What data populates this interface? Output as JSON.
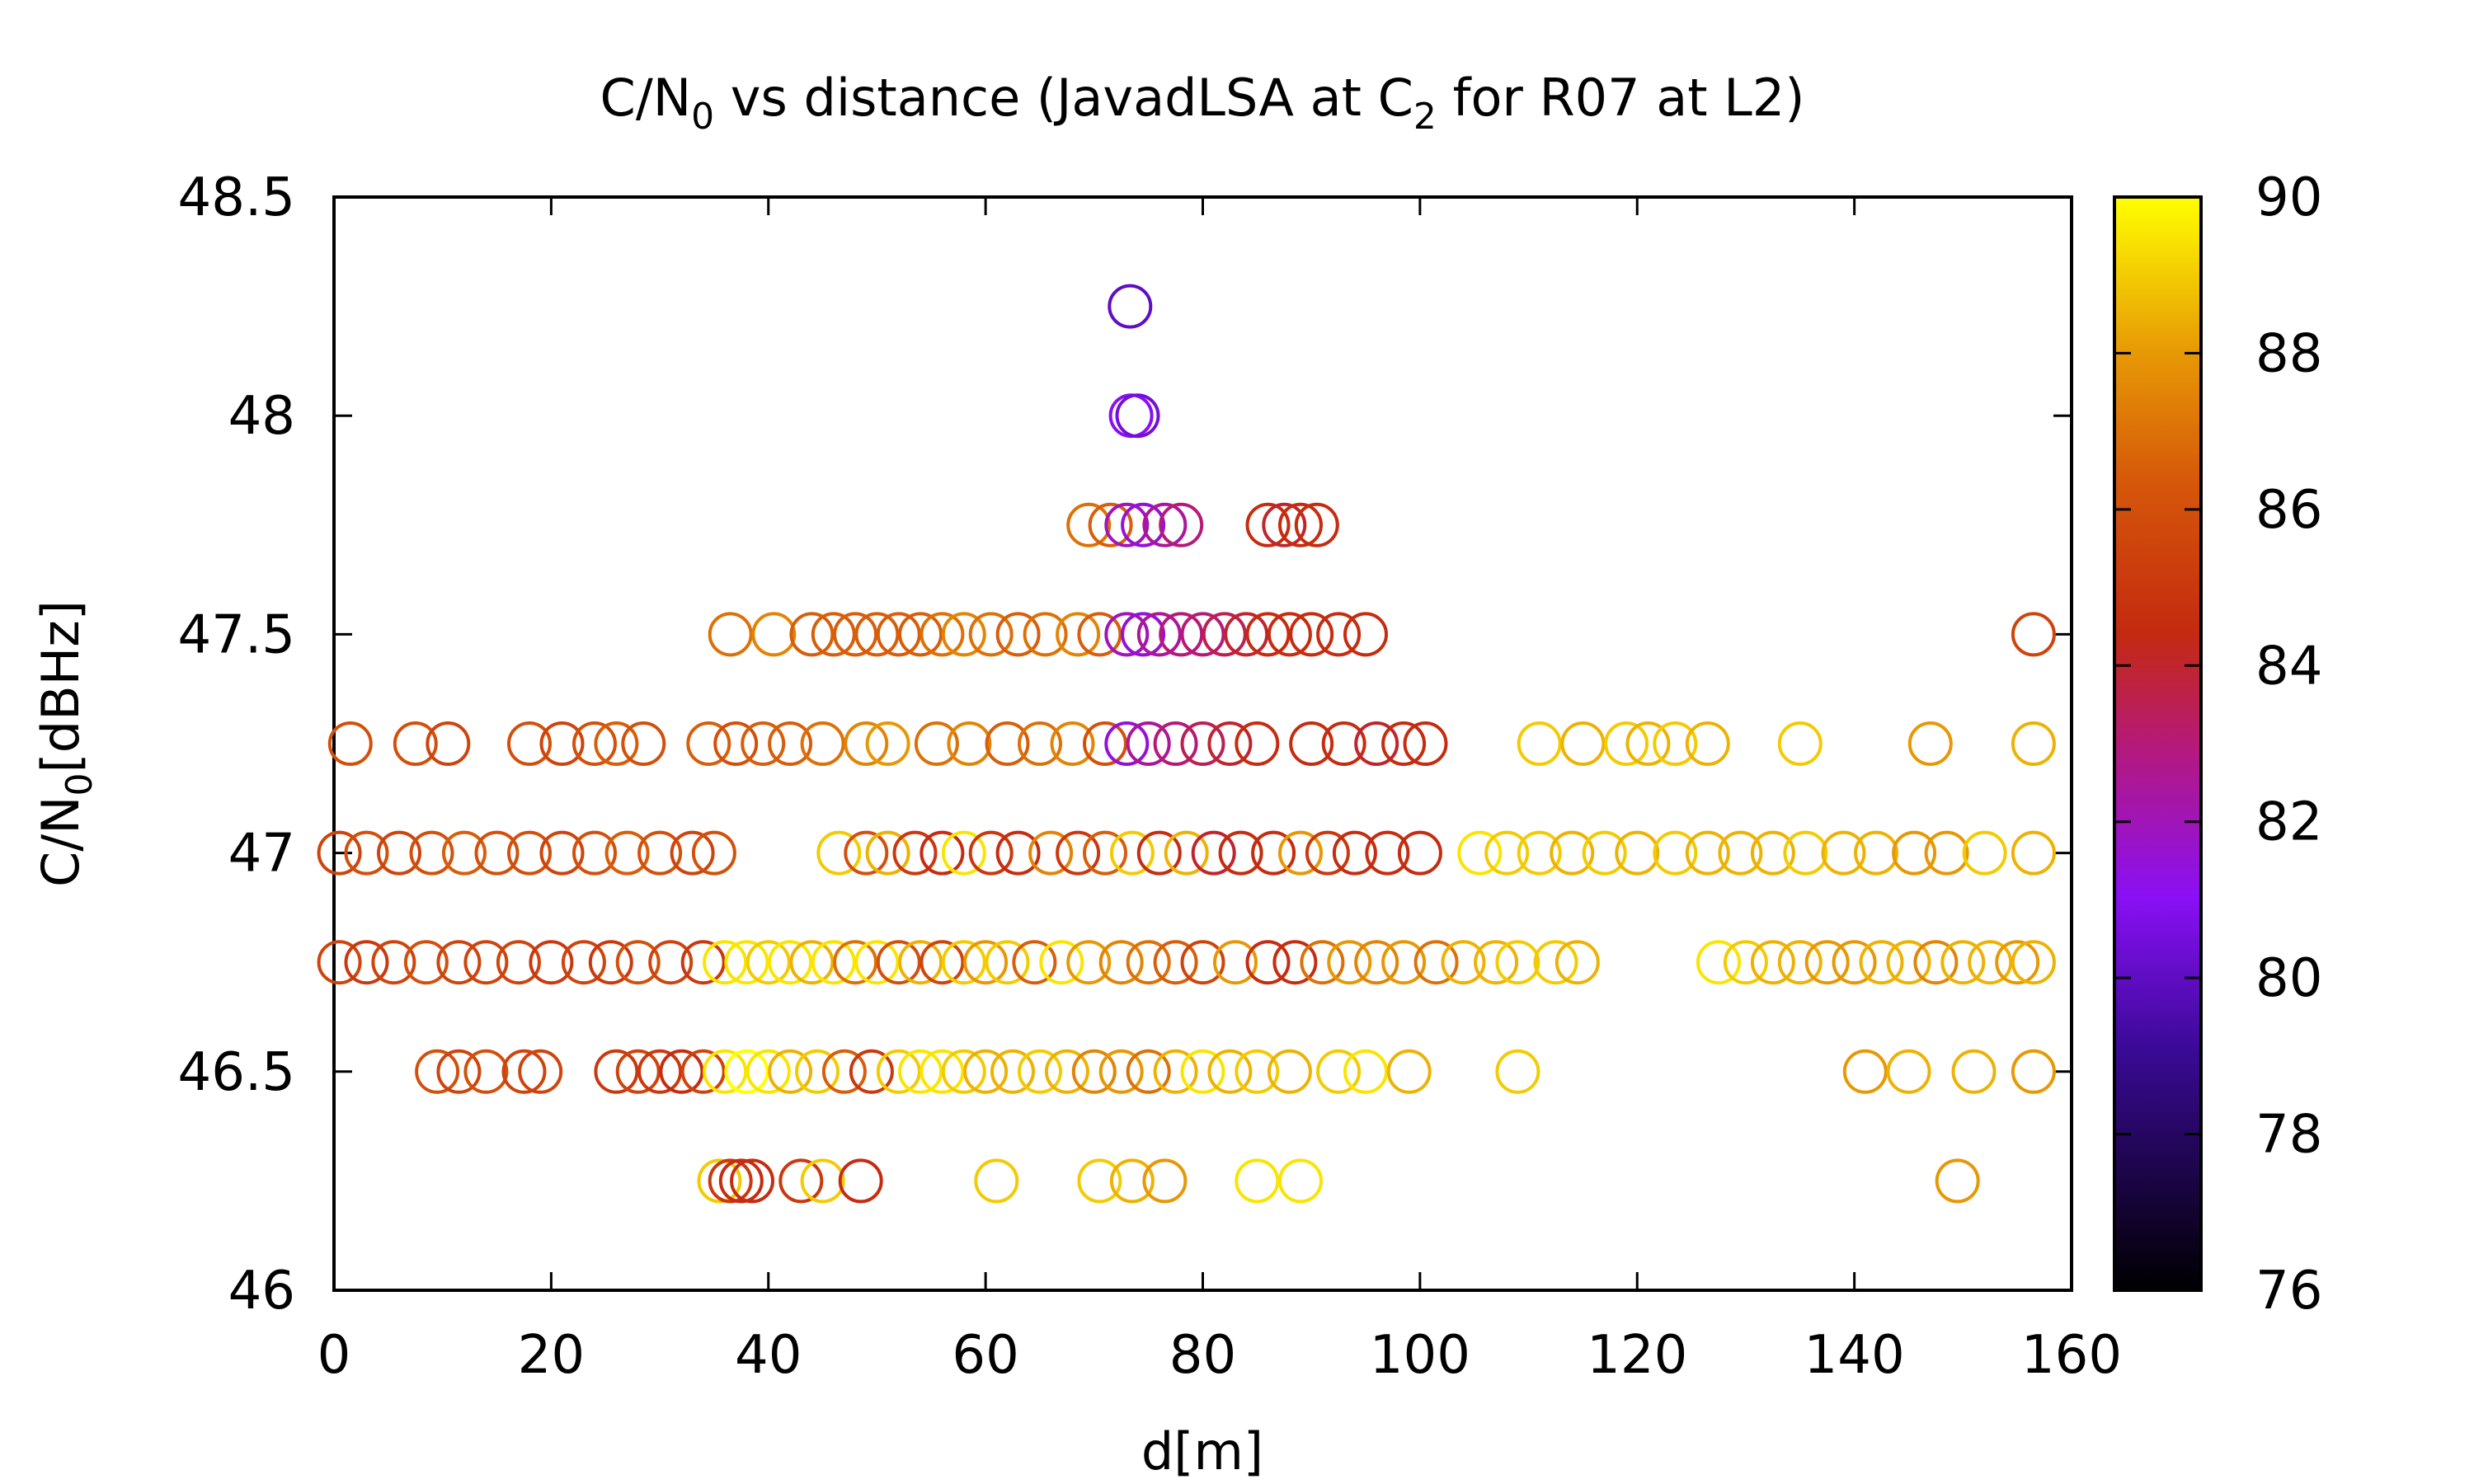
{
  "chart_data": {
    "type": "scatter",
    "title_parts": [
      "C/N",
      "0",
      " vs distance (JavadLSA at C",
      "2",
      " for R07 at L2)"
    ],
    "xlabel": "d[m]",
    "ylabel_parts": [
      "C/N",
      "0",
      "[dBHz]"
    ],
    "xlim": [
      0,
      160
    ],
    "ylim": [
      46,
      48.5
    ],
    "xticks": [
      "0",
      "20",
      "40",
      "60",
      "80",
      "100",
      "120",
      "140",
      "160"
    ],
    "yticks": [
      "46",
      "46.5",
      "47",
      "47.5",
      "48",
      "48.5"
    ],
    "colorbar": {
      "range": [
        76,
        90
      ],
      "ticks": [
        "76",
        "78",
        "80",
        "82",
        "84",
        "86",
        "88",
        "90"
      ],
      "palette": "gnuplot black-purple-red-orange-yellow"
    },
    "grid": false,
    "legend": "none",
    "marker": "open circle",
    "point_format": "[d_m, CN0_dBHz, color_value]",
    "points": [
      [
        73.3,
        48.25,
        80.0
      ],
      [
        73.4,
        48.0,
        81.0
      ],
      [
        74.0,
        48.0,
        80.5
      ],
      [
        69.5,
        47.75,
        87.0
      ],
      [
        71.5,
        47.75,
        86.5
      ],
      [
        73.0,
        47.75,
        82.0
      ],
      [
        74.5,
        47.75,
        81.5
      ],
      [
        76.5,
        47.75,
        82.5
      ],
      [
        78.0,
        47.75,
        83.0
      ],
      [
        86.0,
        47.75,
        84.5
      ],
      [
        87.5,
        47.75,
        84.0
      ],
      [
        89.0,
        47.75,
        84.5
      ],
      [
        90.5,
        47.75,
        84.5
      ],
      [
        156.5,
        47.5,
        85.5
      ],
      [
        36.5,
        47.5,
        87.0
      ],
      [
        40.5,
        47.5,
        87.5
      ],
      [
        44.0,
        47.5,
        86.5
      ],
      [
        46.0,
        47.5,
        86.5
      ],
      [
        48.0,
        47.5,
        86.5
      ],
      [
        50.0,
        47.5,
        86.5
      ],
      [
        52.0,
        47.5,
        86.5
      ],
      [
        54.0,
        47.5,
        86.5
      ],
      [
        56.0,
        47.5,
        87.0
      ],
      [
        58.0,
        47.5,
        87.5
      ],
      [
        60.5,
        47.5,
        87.0
      ],
      [
        63.0,
        47.5,
        86.5
      ],
      [
        65.5,
        47.5,
        87.0
      ],
      [
        68.5,
        47.5,
        87.5
      ],
      [
        70.5,
        47.5,
        86.5
      ],
      [
        73.0,
        47.5,
        82.0
      ],
      [
        74.5,
        47.5,
        81.5
      ],
      [
        76.0,
        47.5,
        82.5
      ],
      [
        78.0,
        47.5,
        83.0
      ],
      [
        80.0,
        47.5,
        83.0
      ],
      [
        82.0,
        47.5,
        83.5
      ],
      [
        84.0,
        47.5,
        84.0
      ],
      [
        86.0,
        47.5,
        84.5
      ],
      [
        88.0,
        47.5,
        84.5
      ],
      [
        90.0,
        47.5,
        84.5
      ],
      [
        92.5,
        47.5,
        84.5
      ],
      [
        95.0,
        47.5,
        84.5
      ],
      [
        1.5,
        47.25,
        86.0
      ],
      [
        7.5,
        47.25,
        86.0
      ],
      [
        10.5,
        47.25,
        85.5
      ],
      [
        18.0,
        47.25,
        86.0
      ],
      [
        21.0,
        47.25,
        85.5
      ],
      [
        24.0,
        47.25,
        86.0
      ],
      [
        26.0,
        47.25,
        86.5
      ],
      [
        28.5,
        47.25,
        86.0
      ],
      [
        34.5,
        47.25,
        86.5
      ],
      [
        37.0,
        47.25,
        86.0
      ],
      [
        39.5,
        47.25,
        86.5
      ],
      [
        42.0,
        47.25,
        86.5
      ],
      [
        45.0,
        47.25,
        87.0
      ],
      [
        49.0,
        47.25,
        87.5
      ],
      [
        51.0,
        47.25,
        88.0
      ],
      [
        55.5,
        47.25,
        87.0
      ],
      [
        58.5,
        47.25,
        87.5
      ],
      [
        62.0,
        47.25,
        86.5
      ],
      [
        65.0,
        47.25,
        87.0
      ],
      [
        68.0,
        47.25,
        87.5
      ],
      [
        71.0,
        47.25,
        86.0
      ],
      [
        73.0,
        47.25,
        81.5
      ],
      [
        75.0,
        47.25,
        82.5
      ],
      [
        77.5,
        47.25,
        83.0
      ],
      [
        80.0,
        47.25,
        83.5
      ],
      [
        82.5,
        47.25,
        84.0
      ],
      [
        85.0,
        47.25,
        84.5
      ],
      [
        90.0,
        47.25,
        84.5
      ],
      [
        93.0,
        47.25,
        84.5
      ],
      [
        96.0,
        47.25,
        84.0
      ],
      [
        98.5,
        47.25,
        84.5
      ],
      [
        100.5,
        47.25,
        84.5
      ],
      [
        111.0,
        47.25,
        89.0
      ],
      [
        115.0,
        47.25,
        88.5
      ],
      [
        119.0,
        47.25,
        89.0
      ],
      [
        121.0,
        47.25,
        88.5
      ],
      [
        123.5,
        47.25,
        89.0
      ],
      [
        126.5,
        47.25,
        88.5
      ],
      [
        135.0,
        47.25,
        89.0
      ],
      [
        147.0,
        47.25,
        88.0
      ],
      [
        156.5,
        47.25,
        88.5
      ],
      [
        0.5,
        47.0,
        85.5
      ],
      [
        3.0,
        47.0,
        86.0
      ],
      [
        6.0,
        47.0,
        85.5
      ],
      [
        9.0,
        47.0,
        86.0
      ],
      [
        12.0,
        47.0,
        86.5
      ],
      [
        15.0,
        47.0,
        86.0
      ],
      [
        18.0,
        47.0,
        86.0
      ],
      [
        21.0,
        47.0,
        85.5
      ],
      [
        24.0,
        47.0,
        86.0
      ],
      [
        27.0,
        47.0,
        86.5
      ],
      [
        30.0,
        47.0,
        86.0
      ],
      [
        33.0,
        47.0,
        85.5
      ],
      [
        35.0,
        47.0,
        86.0
      ],
      [
        46.5,
        47.0,
        89.0
      ],
      [
        49.0,
        47.0,
        86.0
      ],
      [
        51.0,
        47.0,
        88.5
      ],
      [
        53.5,
        47.0,
        85.0
      ],
      [
        56.0,
        47.0,
        84.5
      ],
      [
        58.0,
        47.0,
        89.5
      ],
      [
        60.5,
        47.0,
        85.0
      ],
      [
        63.0,
        47.0,
        84.5
      ],
      [
        66.0,
        47.0,
        87.5
      ],
      [
        68.5,
        47.0,
        85.0
      ],
      [
        71.0,
        47.0,
        86.5
      ],
      [
        73.5,
        47.0,
        89.0
      ],
      [
        76.0,
        47.0,
        84.5
      ],
      [
        78.5,
        47.0,
        88.5
      ],
      [
        81.0,
        47.0,
        84.0
      ],
      [
        83.5,
        47.0,
        84.5
      ],
      [
        86.5,
        47.0,
        84.5
      ],
      [
        89.0,
        47.0,
        88.0
      ],
      [
        91.5,
        47.0,
        85.0
      ],
      [
        94.0,
        47.0,
        84.5
      ],
      [
        97.0,
        47.0,
        84.5
      ],
      [
        100.0,
        47.0,
        84.5
      ],
      [
        105.5,
        47.0,
        89.5
      ],
      [
        108.0,
        47.0,
        89.0
      ],
      [
        111.0,
        47.0,
        89.0
      ],
      [
        114.0,
        47.0,
        88.5
      ],
      [
        117.0,
        47.0,
        89.0
      ],
      [
        120.0,
        47.0,
        88.5
      ],
      [
        123.5,
        47.0,
        89.0
      ],
      [
        126.5,
        47.0,
        88.5
      ],
      [
        129.5,
        47.0,
        88.5
      ],
      [
        132.5,
        47.0,
        88.5
      ],
      [
        135.5,
        47.0,
        89.0
      ],
      [
        139.0,
        47.0,
        88.5
      ],
      [
        142.0,
        47.0,
        88.5
      ],
      [
        145.5,
        47.0,
        88.0
      ],
      [
        148.5,
        47.0,
        88.0
      ],
      [
        152.0,
        47.0,
        89.0
      ],
      [
        156.5,
        47.0,
        88.5
      ],
      [
        0.5,
        46.75,
        85.5
      ],
      [
        3.0,
        46.75,
        85.0
      ],
      [
        5.5,
        46.75,
        85.5
      ],
      [
        8.5,
        46.75,
        86.0
      ],
      [
        11.5,
        46.75,
        85.5
      ],
      [
        14.0,
        46.75,
        85.5
      ],
      [
        17.0,
        46.75,
        85.5
      ],
      [
        20.0,
        46.75,
        85.0
      ],
      [
        23.0,
        46.75,
        85.5
      ],
      [
        25.5,
        46.75,
        85.0
      ],
      [
        28.0,
        46.75,
        86.0
      ],
      [
        31.0,
        46.75,
        85.5
      ],
      [
        34.0,
        46.75,
        85.0
      ],
      [
        36.0,
        46.75,
        89.5
      ],
      [
        38.0,
        46.75,
        89.5
      ],
      [
        40.0,
        46.75,
        89.0
      ],
      [
        42.0,
        46.75,
        89.5
      ],
      [
        44.0,
        46.75,
        88.5
      ],
      [
        46.0,
        46.75,
        89.5
      ],
      [
        48.0,
        46.75,
        87.0
      ],
      [
        50.0,
        46.75,
        89.5
      ],
      [
        52.0,
        46.75,
        86.0
      ],
      [
        54.0,
        46.75,
        88.5
      ],
      [
        56.0,
        46.75,
        85.5
      ],
      [
        58.0,
        46.75,
        89.0
      ],
      [
        60.0,
        46.75,
        88.0
      ],
      [
        62.0,
        46.75,
        89.0
      ],
      [
        64.5,
        46.75,
        86.5
      ],
      [
        67.0,
        46.75,
        89.5
      ],
      [
        69.5,
        46.75,
        88.0
      ],
      [
        72.5,
        46.75,
        87.5
      ],
      [
        75.0,
        46.75,
        87.0
      ],
      [
        77.5,
        46.75,
        86.5
      ],
      [
        80.0,
        46.75,
        85.5
      ],
      [
        83.0,
        46.75,
        88.0
      ],
      [
        86.0,
        46.75,
        84.5
      ],
      [
        88.5,
        46.75,
        84.5
      ],
      [
        91.0,
        46.75,
        87.0
      ],
      [
        93.5,
        46.75,
        88.0
      ],
      [
        96.0,
        46.75,
        87.5
      ],
      [
        98.5,
        46.75,
        88.0
      ],
      [
        101.5,
        46.75,
        87.0
      ],
      [
        104.0,
        46.75,
        88.5
      ],
      [
        107.0,
        46.75,
        88.5
      ],
      [
        109.0,
        46.75,
        89.0
      ],
      [
        112.5,
        46.75,
        89.0
      ],
      [
        114.5,
        46.75,
        88.5
      ],
      [
        127.5,
        46.75,
        89.5
      ],
      [
        130.0,
        46.75,
        89.0
      ],
      [
        132.5,
        46.75,
        88.5
      ],
      [
        135.0,
        46.75,
        88.5
      ],
      [
        137.5,
        46.75,
        88.0
      ],
      [
        140.0,
        46.75,
        88.0
      ],
      [
        142.5,
        46.75,
        88.5
      ],
      [
        145.0,
        46.75,
        88.5
      ],
      [
        147.5,
        46.75,
        87.5
      ],
      [
        150.0,
        46.75,
        88.5
      ],
      [
        152.5,
        46.75,
        88.5
      ],
      [
        155.0,
        46.75,
        88.0
      ],
      [
        156.5,
        46.75,
        88.5
      ],
      [
        9.5,
        46.5,
        86.0
      ],
      [
        11.5,
        46.5,
        85.5
      ],
      [
        14.0,
        46.5,
        86.0
      ],
      [
        17.5,
        46.5,
        85.5
      ],
      [
        19.0,
        46.5,
        85.5
      ],
      [
        26.0,
        46.5,
        85.0
      ],
      [
        28.0,
        46.5,
        85.5
      ],
      [
        30.0,
        46.5,
        85.0
      ],
      [
        32.0,
        46.5,
        84.5
      ],
      [
        34.0,
        46.5,
        85.5
      ],
      [
        36.0,
        46.5,
        89.5
      ],
      [
        38.0,
        46.5,
        90.0
      ],
      [
        40.0,
        46.5,
        89.5
      ],
      [
        42.0,
        46.5,
        88.5
      ],
      [
        44.5,
        46.5,
        89.0
      ],
      [
        47.0,
        46.5,
        86.5
      ],
      [
        49.5,
        46.5,
        85.0
      ],
      [
        52.0,
        46.5,
        89.0
      ],
      [
        54.0,
        46.5,
        89.5
      ],
      [
        56.0,
        46.5,
        89.5
      ],
      [
        58.0,
        46.5,
        89.0
      ],
      [
        60.0,
        46.5,
        88.5
      ],
      [
        62.5,
        46.5,
        88.5
      ],
      [
        65.0,
        46.5,
        89.0
      ],
      [
        67.5,
        46.5,
        88.5
      ],
      [
        70.0,
        46.5,
        87.5
      ],
      [
        72.5,
        46.5,
        88.0
      ],
      [
        75.0,
        46.5,
        87.0
      ],
      [
        77.5,
        46.5,
        88.5
      ],
      [
        80.0,
        46.5,
        89.5
      ],
      [
        82.5,
        46.5,
        88.5
      ],
      [
        85.0,
        46.5,
        89.0
      ],
      [
        88.0,
        46.5,
        88.5
      ],
      [
        92.5,
        46.5,
        89.0
      ],
      [
        95.0,
        46.5,
        89.5
      ],
      [
        99.0,
        46.5,
        88.5
      ],
      [
        109.0,
        46.5,
        89.0
      ],
      [
        141.0,
        46.5,
        88.0
      ],
      [
        145.0,
        46.5,
        88.5
      ],
      [
        151.0,
        46.5,
        88.5
      ],
      [
        156.5,
        46.5,
        88.0
      ],
      [
        35.5,
        46.25,
        89.0
      ],
      [
        36.5,
        46.25,
        85.0
      ],
      [
        37.5,
        46.25,
        84.5
      ],
      [
        38.5,
        46.25,
        84.5
      ],
      [
        43.0,
        46.25,
        85.0
      ],
      [
        45.0,
        46.25,
        89.0
      ],
      [
        48.5,
        46.25,
        84.5
      ],
      [
        61.0,
        46.25,
        89.0
      ],
      [
        70.5,
        46.25,
        89.0
      ],
      [
        73.5,
        46.25,
        88.5
      ],
      [
        76.5,
        46.25,
        88.0
      ],
      [
        85.0,
        46.25,
        89.5
      ],
      [
        89.0,
        46.25,
        89.5
      ],
      [
        149.5,
        46.25,
        88.0
      ]
    ]
  }
}
